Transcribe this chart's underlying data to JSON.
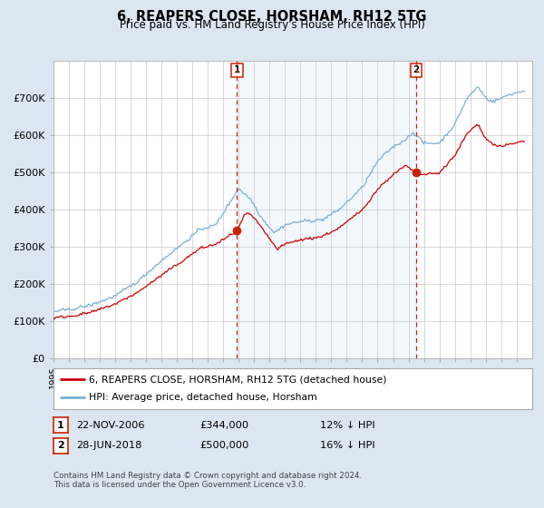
{
  "title": "6, REAPERS CLOSE, HORSHAM, RH12 5TG",
  "subtitle": "Price paid vs. HM Land Registry's House Price Index (HPI)",
  "legend_line1": "6, REAPERS CLOSE, HORSHAM, RH12 5TG (detached house)",
  "legend_line2": "HPI: Average price, detached house, Horsham",
  "annotation1_date": "22-NOV-2006",
  "annotation1_price": 344000,
  "annotation1_year": 2006.9,
  "annotation1_pct": "12% ↓ HPI",
  "annotation2_date": "28-JUN-2018",
  "annotation2_price": 500000,
  "annotation2_year": 2018.5,
  "annotation2_pct": "16% ↓ HPI",
  "footer": "Contains HM Land Registry data © Crown copyright and database right 2024.\nThis data is licensed under the Open Government Licence v3.0.",
  "hpi_color": "#7bafd4",
  "price_color": "#cc0000",
  "annotation_color": "#cc2200",
  "shade_color": "#dbeaf7",
  "bg_color": "#dce6f1",
  "plot_bg": "#ffffff",
  "ylim": [
    0,
    800000
  ],
  "yticks": [
    0,
    100000,
    200000,
    300000,
    400000,
    500000,
    600000,
    700000
  ],
  "ylabel_fmt": [
    "£0",
    "£100K",
    "£200K",
    "£300K",
    "£400K",
    "£500K",
    "£600K",
    "£700K"
  ],
  "xstart": 1995,
  "xend": 2026
}
